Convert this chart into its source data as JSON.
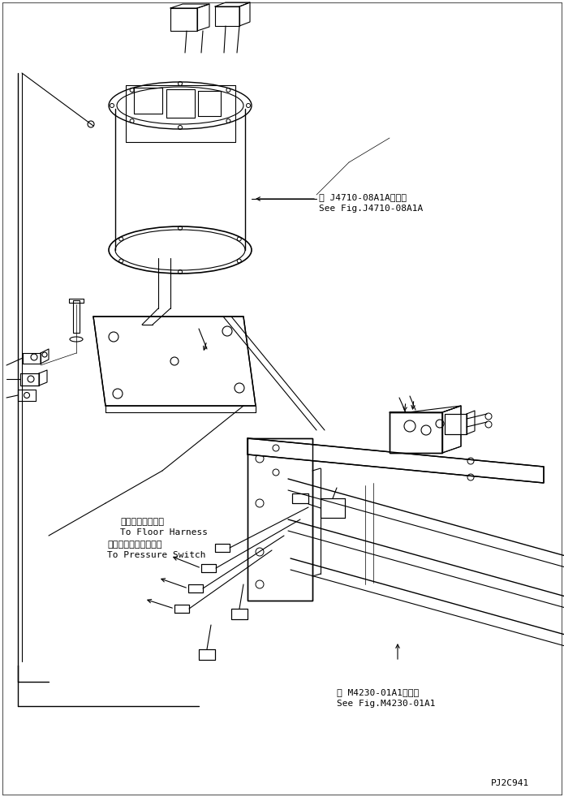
{
  "bg_color": "#ffffff",
  "lc": "#000000",
  "annotation1_line1": "第 J4710-08A1A図参照",
  "annotation1_line2": "See Fig.J4710-08A1A",
  "annotation2_line1": "第 M4230-01A1図参照",
  "annotation2_line2": "See Fig.M4230-01A1",
  "label1_line1": "フロアハーネスへ",
  "label1_line2": "To Floor Harness",
  "label2_line1": "プレッシャスイッチへ",
  "label2_line2": "To Pressure Switch",
  "watermark": "PJ2C941"
}
